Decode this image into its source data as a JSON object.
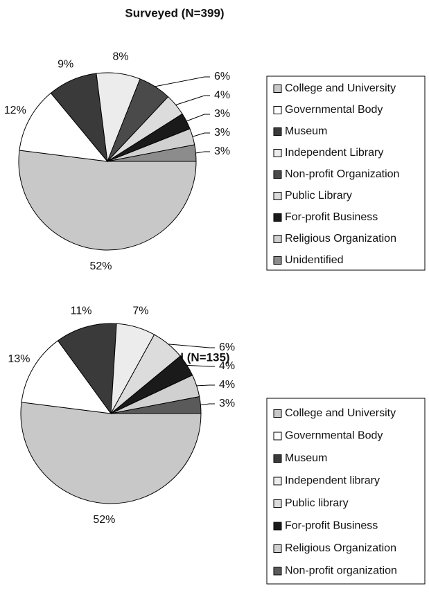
{
  "chart_data": [
    {
      "type": "pie",
      "title": "Surveyed (N=399)",
      "categories": [
        "College and University",
        "Governmental Body",
        "Museum",
        "Independent Library",
        "Non-profit Organization",
        "Public Library",
        "For-profit Business",
        "Religious Organization",
        "Unidentified"
      ],
      "values": [
        52,
        12,
        9,
        8,
        6,
        4,
        3,
        3,
        3
      ],
      "value_labels": [
        "52%",
        "12%",
        "9%",
        "8%",
        "6%",
        "4%",
        "3%",
        "3%",
        "3%"
      ],
      "colors": [
        "#c8c8c8",
        "#ffffff",
        "#3a3a3a",
        "#ececec",
        "#4a4a4a",
        "#dcdcdc",
        "#1a1a1a",
        "#d0d0d0",
        "#8c8c8c"
      ]
    },
    {
      "type": "pie",
      "title": "Responded (N=135)",
      "categories": [
        "College and University",
        "Governmental Body",
        "Museum",
        "Independent library",
        "Public library",
        "For-profit Business",
        "Religious Organization",
        "Non-profit organization"
      ],
      "values": [
        52,
        13,
        11,
        7,
        6,
        4,
        4,
        3
      ],
      "value_labels": [
        "52%",
        "13%",
        "11%",
        "7%",
        "6%",
        "4%",
        "4%",
        "3%"
      ],
      "colors": [
        "#c8c8c8",
        "#ffffff",
        "#3a3a3a",
        "#ececec",
        "#dcdcdc",
        "#1a1a1a",
        "#d0d0d0",
        "#5a5a5a"
      ]
    }
  ]
}
